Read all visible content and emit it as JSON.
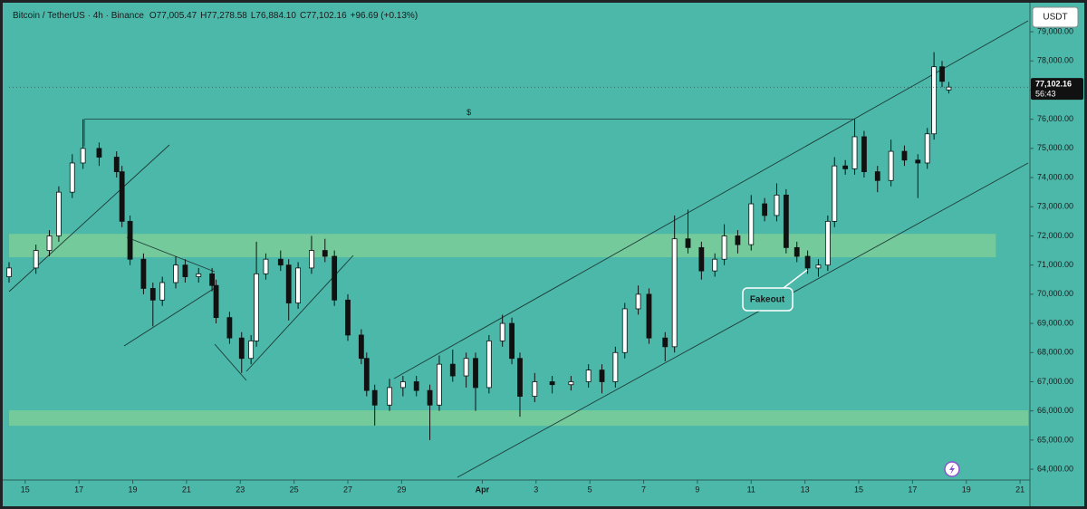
{
  "chart_data": {
    "type": "candlestick",
    "title": "Bitcoin / TetherUS · 4h · Binance",
    "ohlc_labels": [
      "O77,005.47",
      "H77,278.58",
      "L76,884.10",
      "C77,102.16",
      "+96.69 (+0.13%)"
    ],
    "currency_button": "USDT",
    "price_tag": {
      "value": 77102.16,
      "label": "77,102.16",
      "countdown": "56:43"
    },
    "ylim": [
      63630,
      79840
    ],
    "yticks": [
      {
        "value": 64000,
        "label": "64,000.00"
      },
      {
        "value": 65000,
        "label": "65,000.00"
      },
      {
        "value": 66000,
        "label": "66,000.00"
      },
      {
        "value": 67000,
        "label": "67,000.00"
      },
      {
        "value": 68000,
        "label": "68,000.00"
      },
      {
        "value": 69000,
        "label": "69,000.00"
      },
      {
        "value": 70000,
        "label": "70,000.00"
      },
      {
        "value": 71000,
        "label": "71,000.00"
      },
      {
        "value": 72000,
        "label": "72,000.00"
      },
      {
        "value": 73000,
        "label": "73,000.00"
      },
      {
        "value": 74000,
        "label": "74,000.00"
      },
      {
        "value": 75000,
        "label": "75,000.00"
      },
      {
        "value": 76000,
        "label": "76,000.00"
      },
      {
        "value": 77000,
        "label": "77,000.00"
      },
      {
        "value": 78000,
        "label": "78,000.00"
      },
      {
        "value": 79000,
        "label": "79,000.00"
      }
    ],
    "xlim": [
      -0.6,
      37.3
    ],
    "xticks": [
      {
        "value": 0,
        "label": "15"
      },
      {
        "value": 2,
        "label": "17"
      },
      {
        "value": 4,
        "label": "19"
      },
      {
        "value": 6,
        "label": "21"
      },
      {
        "value": 8,
        "label": "23"
      },
      {
        "value": 10,
        "label": "25"
      },
      {
        "value": 12,
        "label": "27"
      },
      {
        "value": 14,
        "label": "29"
      },
      {
        "value": 17,
        "label": "Apr"
      },
      {
        "value": 19,
        "label": "3"
      },
      {
        "value": 21,
        "label": "5"
      },
      {
        "value": 23,
        "label": "7"
      },
      {
        "value": 25,
        "label": "9"
      },
      {
        "value": 27,
        "label": "11"
      },
      {
        "value": 29,
        "label": "13"
      },
      {
        "value": 31,
        "label": "15"
      },
      {
        "value": 33,
        "label": "17"
      },
      {
        "value": 35,
        "label": "19"
      },
      {
        "value": 37,
        "label": "21"
      }
    ],
    "zones": [
      {
        "from": 71270,
        "to": 72070,
        "x_end": 36.1
      },
      {
        "from": 65490,
        "to": 66020,
        "x_end": 37.3
      }
    ],
    "level": {
      "label": "$",
      "value": 76000,
      "x_from": 2.2,
      "x_to": 30.8
    },
    "annotation": "Fakeout",
    "up_color": "#ffffff",
    "down_color": "#111111",
    "candles": {
      "x": [
        -0.6,
        0.4,
        0.9,
        1.25,
        1.75,
        2.15,
        2.75,
        3.4,
        3.6,
        3.9,
        4.4,
        4.75,
        5.1,
        5.6,
        5.95,
        6.45,
        6.95,
        7.1,
        7.6,
        8.05,
        8.4,
        8.6,
        8.95,
        9.5,
        9.8,
        10.15,
        10.65,
        11.15,
        11.5,
        12.0,
        12.5,
        12.7,
        13.0,
        13.55,
        14.05,
        14.55,
        15.05,
        15.4,
        15.9,
        16.4,
        16.75,
        17.25,
        17.75,
        18.1,
        18.4,
        18.95,
        19.6,
        20.3,
        20.95,
        21.45,
        21.95,
        22.3,
        22.8,
        23.2,
        23.8,
        24.15,
        24.65,
        25.15,
        25.65,
        26.0,
        26.5,
        27.0,
        27.5,
        27.95,
        28.3,
        28.7,
        29.1,
        29.5,
        29.85,
        30.1,
        30.5,
        30.85,
        31.2,
        31.7,
        32.2,
        32.7,
        33.2,
        33.55,
        33.8,
        34.1,
        34.35
      ],
      "open": [
        70600,
        70900,
        71500,
        72000,
        73500,
        74500,
        75000,
        74700,
        74200,
        72500,
        71200,
        70200,
        69800,
        70400,
        71000,
        70600,
        70700,
        70300,
        69200,
        68500,
        67800,
        68400,
        70700,
        71200,
        71000,
        69700,
        70900,
        71500,
        71300,
        69800,
        68600,
        67800,
        66700,
        66200,
        66800,
        67000,
        66700,
        66200,
        67600,
        67200,
        67800,
        66800,
        68400,
        69000,
        67800,
        66500,
        67000,
        66900,
        67000,
        67400,
        67000,
        68000,
        69500,
        70000,
        68500,
        68200,
        71900,
        71600,
        70800,
        71200,
        72000,
        71700,
        73100,
        72700,
        73400,
        71600,
        71300,
        70900,
        71000,
        72500,
        74400,
        74300,
        75400,
        74200,
        73900,
        74900,
        74600,
        74500,
        75500,
        77800,
        77005.47
      ],
      "high": [
        71100,
        71700,
        72200,
        73700,
        74800,
        76000,
        75200,
        74900,
        74400,
        72700,
        71400,
        70400,
        70600,
        71300,
        71200,
        70900,
        70900,
        70500,
        69400,
        68700,
        68600,
        71800,
        71400,
        71500,
        71200,
        71100,
        72000,
        71900,
        71500,
        70000,
        68800,
        68000,
        66900,
        67100,
        67200,
        67200,
        66900,
        67900,
        68100,
        68000,
        68000,
        68600,
        69300,
        69200,
        68000,
        67300,
        67200,
        67200,
        67600,
        67600,
        68200,
        69700,
        70300,
        70200,
        68700,
        72700,
        72900,
        71800,
        71400,
        72400,
        72200,
        73400,
        73300,
        73800,
        73600,
        71800,
        71500,
        71200,
        72700,
        74700,
        74600,
        76000,
        75600,
        74400,
        75300,
        75100,
        74800,
        75700,
        78300,
        78000,
        77278.58
      ],
      "low": [
        70400,
        70700,
        71300,
        71800,
        73300,
        74300,
        74400,
        74000,
        72300,
        71000,
        70000,
        68900,
        69600,
        70200,
        70400,
        70400,
        70100,
        69000,
        68300,
        67300,
        67600,
        68200,
        70500,
        70800,
        69100,
        69500,
        70700,
        71100,
        69600,
        68400,
        67600,
        66500,
        65500,
        66000,
        66500,
        66500,
        65000,
        66000,
        67000,
        66800,
        66000,
        66600,
        68200,
        67600,
        65800,
        66300,
        66600,
        66700,
        66800,
        66600,
        66800,
        67800,
        69300,
        68300,
        67700,
        68000,
        71400,
        70500,
        70600,
        71000,
        71400,
        71500,
        72500,
        72500,
        71400,
        71100,
        70700,
        70600,
        70800,
        72300,
        74100,
        74100,
        74000,
        73500,
        73700,
        74400,
        73300,
        74300,
        75300,
        77100,
        76884.1
      ],
      "close": [
        70900,
        71500,
        72000,
        73500,
        74500,
        75000,
        74700,
        74200,
        72500,
        71200,
        70200,
        69800,
        70400,
        71000,
        70600,
        70700,
        70300,
        69200,
        68500,
        67800,
        68400,
        70700,
        71200,
        71000,
        69700,
        70900,
        71500,
        71300,
        69800,
        68600,
        67800,
        66700,
        66200,
        66800,
        67000,
        66700,
        66200,
        67600,
        67200,
        67800,
        66800,
        68400,
        69000,
        67800,
        66500,
        67000,
        66900,
        67000,
        67400,
        67000,
        68000,
        69500,
        70000,
        68500,
        68200,
        71900,
        71600,
        70800,
        71200,
        72000,
        71700,
        73100,
        72700,
        73400,
        71600,
        71300,
        70900,
        71000,
        72500,
        74400,
        74300,
        75400,
        74200,
        73900,
        74900,
        74600,
        74500,
        75500,
        77800,
        77300,
        77102.16
      ]
    }
  }
}
